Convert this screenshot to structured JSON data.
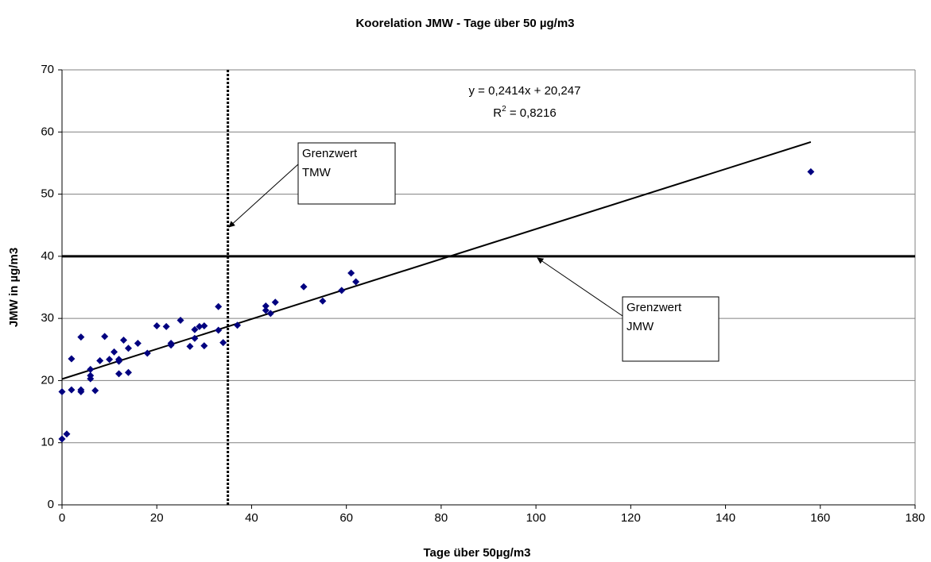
{
  "chart_data": {
    "type": "scatter",
    "title": "Koorelation JMW - Tage über 50 µg/m3",
    "x_label": "Tage über 50µg/m3",
    "y_label": "JMW in µg/m3",
    "color": "#000080",
    "x": [
      0,
      0,
      1,
      2,
      2,
      4,
      4,
      4,
      6,
      6,
      6,
      7,
      8,
      9,
      10,
      11,
      12,
      12,
      12,
      13,
      14,
      14,
      16,
      18,
      20,
      22,
      23,
      23,
      25,
      27,
      28,
      28,
      29,
      30,
      30,
      33,
      33,
      34,
      37,
      43,
      43,
      44,
      45,
      51,
      55,
      59,
      61,
      62,
      158
    ],
    "values": [
      18.2,
      10.6,
      11.4,
      23.5,
      18.5,
      18.5,
      18.2,
      27.0,
      21.8,
      20.8,
      20.3,
      18.4,
      23.2,
      27.1,
      23.4,
      24.6,
      23.4,
      21.1,
      23.1,
      26.5,
      25.2,
      21.3,
      26.0,
      24.4,
      28.8,
      28.7,
      26.0,
      25.7,
      29.7,
      25.5,
      28.2,
      26.8,
      28.7,
      28.8,
      25.6,
      31.9,
      28.1,
      26.1,
      28.9,
      32.0,
      31.3,
      30.8,
      32.6,
      35.1,
      32.8,
      34.5,
      37.3,
      35.9,
      53.6
    ],
    "trendline": {
      "x": [
        0,
        158
      ],
      "values": [
        20.247,
        58.39
      ],
      "equation": "y = 0,2414x + 20,247",
      "r2": {
        "base": "R",
        "sup": "2",
        "rest": " = 0,8216"
      }
    },
    "hline": 40,
    "vline": 35,
    "annotations": [
      {
        "lines": [
          "Grenzwert",
          "TMW"
        ]
      },
      {
        "lines": [
          "Grenzwert",
          "JMW"
        ]
      }
    ],
    "xlim": [
      0,
      180
    ],
    "xticks": [
      0,
      20,
      40,
      60,
      80,
      100,
      120,
      140,
      160,
      180
    ],
    "ylim": [
      0,
      70
    ],
    "yticks": [
      0,
      10,
      20,
      30,
      40,
      50,
      60,
      70
    ],
    "grid": true
  }
}
